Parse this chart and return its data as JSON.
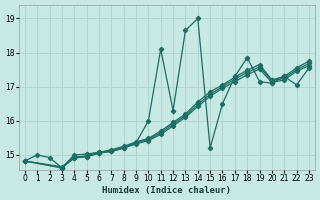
{
  "xlabel": "Humidex (Indice chaleur)",
  "xlim": [
    -0.5,
    23.5
  ],
  "ylim": [
    14.55,
    19.4
  ],
  "xticks": [
    0,
    1,
    2,
    3,
    4,
    5,
    6,
    7,
    8,
    9,
    10,
    11,
    12,
    13,
    14,
    15,
    16,
    17,
    18,
    19,
    20,
    21,
    22,
    23
  ],
  "yticks": [
    15,
    16,
    17,
    18,
    19
  ],
  "bg_color": "#c8e8e4",
  "grid_color": "#b0d4d0",
  "line_color": "#1a6e62",
  "spike_series": [
    [
      0,
      14.82
    ],
    [
      1,
      15.0
    ],
    [
      2,
      14.92
    ],
    [
      3,
      14.62
    ],
    [
      4,
      15.0
    ],
    [
      5,
      15.02
    ],
    [
      6,
      15.08
    ],
    [
      7,
      15.1
    ],
    [
      8,
      15.2
    ],
    [
      9,
      15.35
    ],
    [
      10,
      16.0
    ],
    [
      11,
      18.1
    ],
    [
      12,
      16.3
    ],
    [
      13,
      18.65
    ],
    [
      14,
      19.0
    ],
    [
      15,
      15.2
    ],
    [
      16,
      16.5
    ],
    [
      17,
      17.3
    ],
    [
      18,
      17.85
    ],
    [
      19,
      17.15
    ],
    [
      20,
      17.1
    ],
    [
      21,
      17.3
    ],
    [
      22,
      17.05
    ],
    [
      23,
      17.55
    ]
  ],
  "linear1": [
    [
      0,
      14.82
    ],
    [
      3,
      14.62
    ],
    [
      4,
      14.92
    ],
    [
      5,
      14.95
    ],
    [
      6,
      15.05
    ],
    [
      7,
      15.1
    ],
    [
      8,
      15.2
    ],
    [
      9,
      15.32
    ],
    [
      10,
      15.42
    ],
    [
      11,
      15.6
    ],
    [
      12,
      15.85
    ],
    [
      13,
      16.1
    ],
    [
      14,
      16.42
    ],
    [
      15,
      16.72
    ],
    [
      16,
      16.95
    ],
    [
      17,
      17.15
    ],
    [
      18,
      17.35
    ],
    [
      19,
      17.52
    ],
    [
      20,
      17.12
    ],
    [
      21,
      17.2
    ],
    [
      22,
      17.45
    ],
    [
      23,
      17.62
    ]
  ],
  "linear2": [
    [
      0,
      14.82
    ],
    [
      3,
      14.62
    ],
    [
      4,
      14.9
    ],
    [
      5,
      14.95
    ],
    [
      6,
      15.05
    ],
    [
      7,
      15.12
    ],
    [
      8,
      15.22
    ],
    [
      9,
      15.35
    ],
    [
      10,
      15.45
    ],
    [
      11,
      15.65
    ],
    [
      12,
      15.9
    ],
    [
      13,
      16.15
    ],
    [
      14,
      16.48
    ],
    [
      15,
      16.78
    ],
    [
      16,
      17.0
    ],
    [
      17,
      17.22
    ],
    [
      18,
      17.42
    ],
    [
      19,
      17.58
    ],
    [
      20,
      17.18
    ],
    [
      21,
      17.25
    ],
    [
      22,
      17.5
    ],
    [
      23,
      17.68
    ]
  ],
  "linear3": [
    [
      0,
      14.82
    ],
    [
      3,
      14.65
    ],
    [
      4,
      14.93
    ],
    [
      5,
      14.97
    ],
    [
      6,
      15.07
    ],
    [
      7,
      15.15
    ],
    [
      8,
      15.25
    ],
    [
      9,
      15.38
    ],
    [
      10,
      15.48
    ],
    [
      11,
      15.7
    ],
    [
      12,
      15.95
    ],
    [
      13,
      16.2
    ],
    [
      14,
      16.55
    ],
    [
      15,
      16.85
    ],
    [
      16,
      17.05
    ],
    [
      17,
      17.28
    ],
    [
      18,
      17.48
    ],
    [
      19,
      17.65
    ],
    [
      20,
      17.2
    ],
    [
      21,
      17.3
    ],
    [
      22,
      17.55
    ],
    [
      23,
      17.75
    ]
  ]
}
